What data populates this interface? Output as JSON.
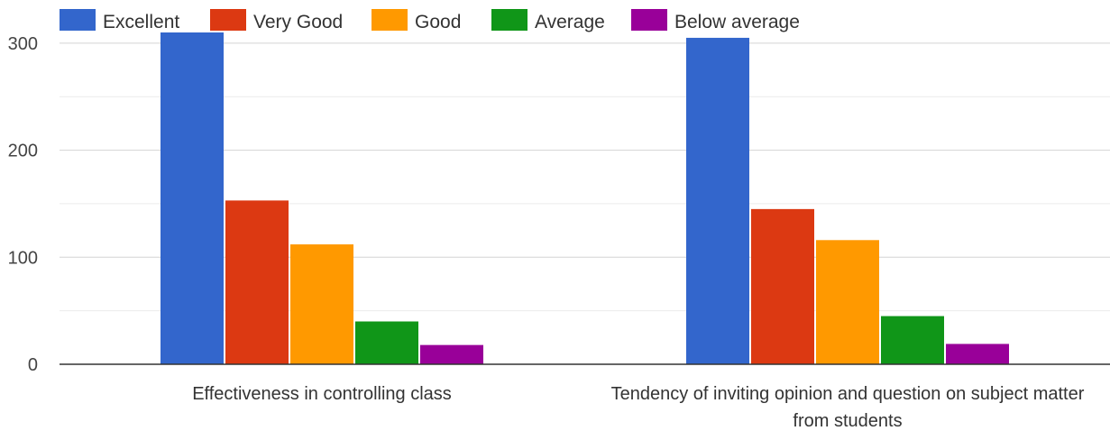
{
  "chart_data": {
    "type": "bar",
    "categories": [
      [
        "Effectiveness in controlling class"
      ],
      [
        "Tendency of inviting opinion and question on subject matter",
        "from students"
      ]
    ],
    "series": [
      {
        "name": "Excellent",
        "color": "#3366cc",
        "values": [
          310,
          305
        ]
      },
      {
        "name": "Very Good",
        "color": "#dc3912",
        "values": [
          153,
          145
        ]
      },
      {
        "name": "Good",
        "color": "#ff9900",
        "values": [
          112,
          116
        ]
      },
      {
        "name": "Average",
        "color": "#109618",
        "values": [
          40,
          45
        ]
      },
      {
        "name": "Below average",
        "color": "#990099",
        "values": [
          18,
          19
        ]
      }
    ],
    "y_ticks": [
      0,
      100,
      200,
      300
    ],
    "ylim": [
      0,
      310
    ],
    "grid": true,
    "legend_position": "top-left"
  }
}
